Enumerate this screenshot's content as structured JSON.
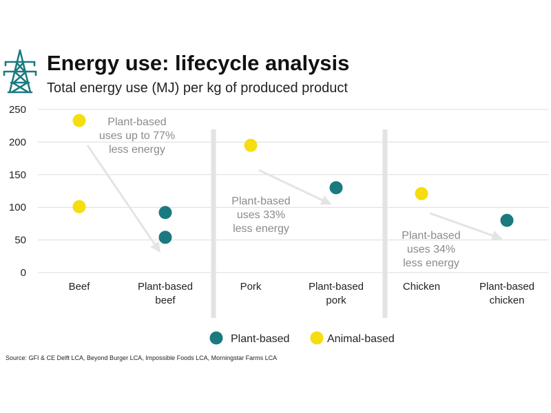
{
  "chart_data": {
    "type": "scatter",
    "title": "Energy use: lifecycle analysis",
    "subtitle": "Total energy use (MJ) per kg of produced product",
    "ylim": [
      0,
      250
    ],
    "yticks": [
      0,
      50,
      100,
      150,
      200,
      250
    ],
    "categories": [
      [
        "Beef"
      ],
      [
        "Plant-based",
        "beef"
      ],
      [
        "Pork"
      ],
      [
        "Plant-based",
        "pork"
      ],
      [
        "Chicken"
      ],
      [
        "Plant-based",
        "chicken"
      ]
    ],
    "series": [
      {
        "name": "Plant-based",
        "color": "#1a7a80",
        "points": [
          {
            "category": 1,
            "value": 92
          },
          {
            "category": 1,
            "value": 54
          },
          {
            "category": 3,
            "value": 130
          },
          {
            "category": 5,
            "value": 80
          }
        ]
      },
      {
        "name": "Animal-based",
        "color": "#f5dd0f",
        "points": [
          {
            "category": 0,
            "value": 233
          },
          {
            "category": 0,
            "value": 101
          },
          {
            "category": 2,
            "value": 195
          },
          {
            "category": 4,
            "value": 121
          }
        ]
      }
    ],
    "annotations": [
      {
        "group": "beef",
        "lines": [
          "Plant-based",
          "uses up to 77%",
          "less energy"
        ],
        "from": {
          "category": 0,
          "value": 195
        },
        "to": {
          "category": 1,
          "value": 32
        }
      },
      {
        "group": "pork",
        "lines": [
          "Plant-based",
          "uses 33%",
          "less energy"
        ],
        "from": {
          "category": 2,
          "value": 157
        },
        "to": {
          "category": 3,
          "value": 105
        }
      },
      {
        "group": "chicken",
        "lines": [
          "Plant-based",
          "uses 34%",
          "less energy"
        ],
        "from": {
          "category": 4,
          "value": 91
        },
        "to": {
          "category": 5,
          "value": 52
        }
      }
    ],
    "legend": [
      "Plant-based",
      "Animal-based"
    ],
    "source": "Source: GFI & CE Delft LCA, Beyond Burger LCA, Impossible Foods LCA, Morningstar Farms LCA"
  }
}
